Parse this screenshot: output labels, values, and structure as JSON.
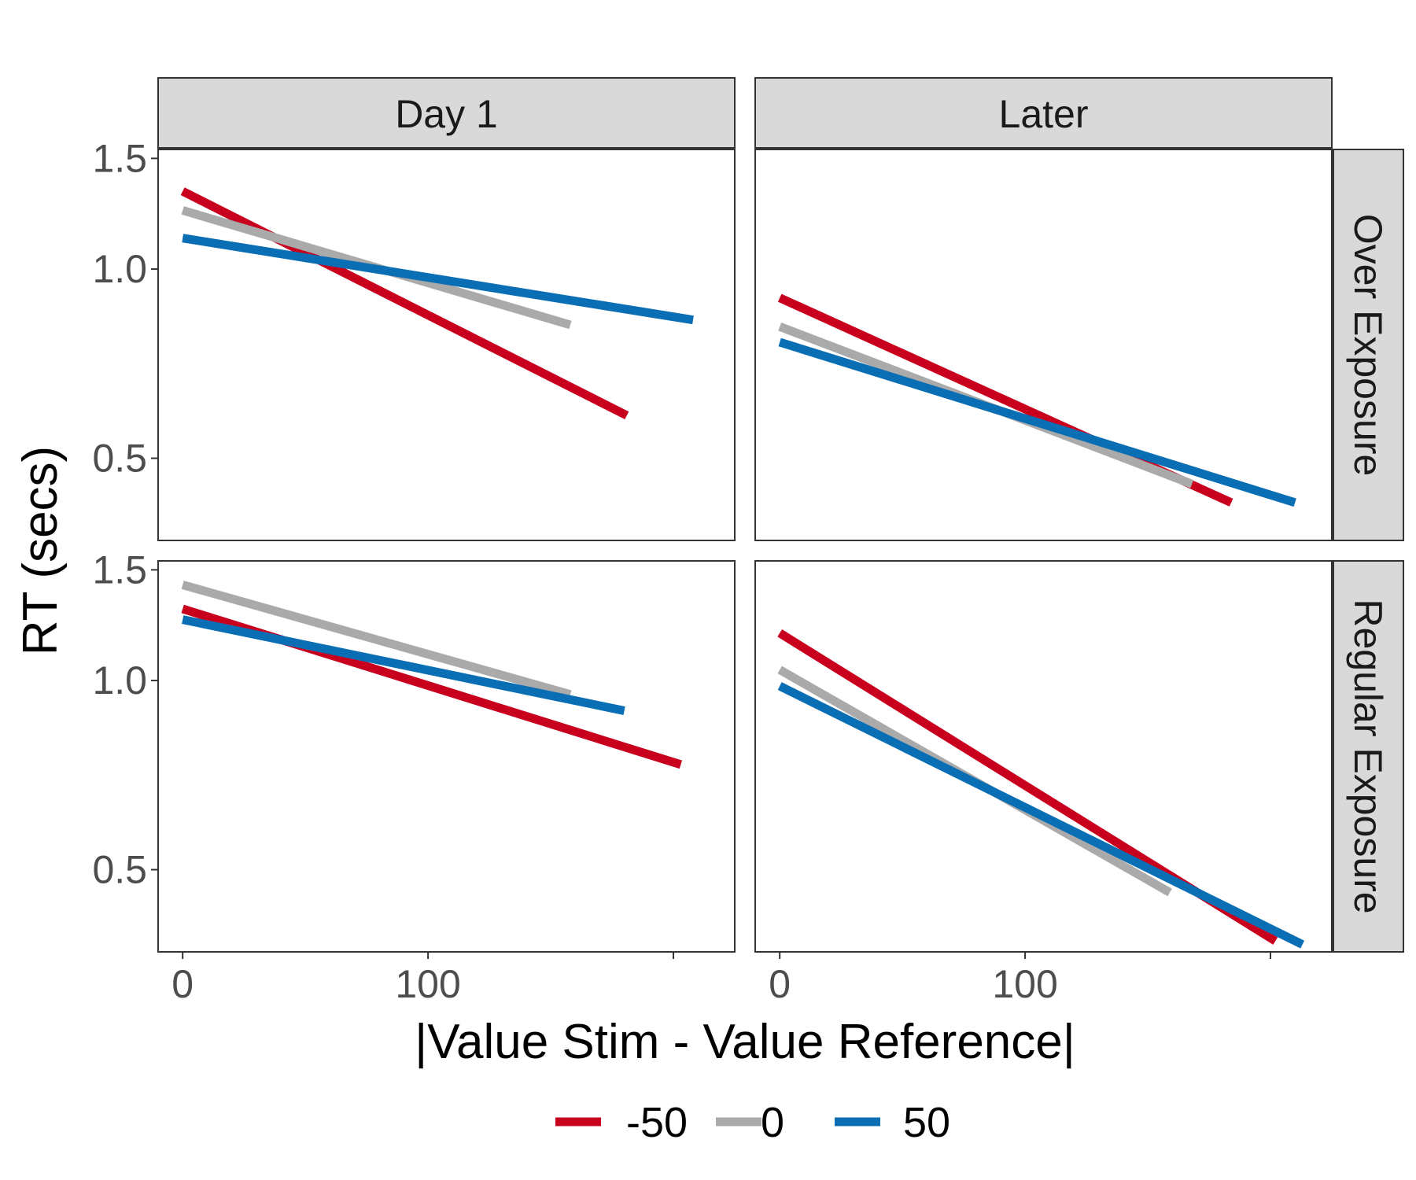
{
  "chart_data": {
    "type": "line",
    "xlabel": "|Value Stim - Value Reference|",
    "ylabel": "RT (secs)",
    "y_scale": "log",
    "ylim": [
      0.37,
      1.55
    ],
    "xlim": [
      -10,
      225
    ],
    "x_ticks": [
      {
        "value": 0,
        "label": "0"
      },
      {
        "value": 100,
        "label": "100"
      },
      {
        "value": 200,
        "label": ""
      }
    ],
    "y_ticks": [
      {
        "value": 0.5,
        "label": "0.5"
      },
      {
        "value": 1.0,
        "label": "1.0"
      },
      {
        "value": 1.5,
        "label": "1.5"
      }
    ],
    "columns": [
      "Day 1",
      "Later"
    ],
    "rows": [
      "Over Exposure",
      "Regular Exposure"
    ],
    "legend_position": "bottom",
    "series_names": [
      "-50",
      "0",
      "50"
    ],
    "colors": {
      "-50": "#c8001e",
      "0": "#aaaaaa",
      "50": "#0a6eb4"
    },
    "panels": [
      {
        "column": "Day 1",
        "row": "Over Exposure",
        "series": [
          {
            "name": "-50",
            "x": [
              0,
              181
            ],
            "y": [
              1.33,
              0.585
            ]
          },
          {
            "name": "0",
            "x": [
              0,
              158
            ],
            "y": [
              1.24,
              0.815
            ]
          },
          {
            "name": "50",
            "x": [
              0,
              208
            ],
            "y": [
              1.12,
              0.83
            ]
          }
        ]
      },
      {
        "column": "Later",
        "row": "Over Exposure",
        "series": [
          {
            "name": "-50",
            "x": [
              0,
              184
            ],
            "y": [
              0.9,
              0.425
            ]
          },
          {
            "name": "0",
            "x": [
              0,
              168
            ],
            "y": [
              0.81,
              0.455
            ]
          },
          {
            "name": "50",
            "x": [
              0,
              210
            ],
            "y": [
              0.765,
              0.425
            ]
          }
        ]
      },
      {
        "column": "Day 1",
        "row": "Regular Exposure",
        "series": [
          {
            "name": "-50",
            "x": [
              0,
              203
            ],
            "y": [
              1.3,
              0.735
            ]
          },
          {
            "name": "0",
            "x": [
              0,
              158
            ],
            "y": [
              1.42,
              0.95
            ]
          },
          {
            "name": "50",
            "x": [
              0,
              180
            ],
            "y": [
              1.25,
              0.895
            ]
          }
        ]
      },
      {
        "column": "Later",
        "row": "Regular Exposure",
        "series": [
          {
            "name": "-50",
            "x": [
              0,
              202
            ],
            "y": [
              1.19,
              0.385
            ]
          },
          {
            "name": "0",
            "x": [
              0,
              159
            ],
            "y": [
              1.04,
              0.46
            ]
          },
          {
            "name": "50",
            "x": [
              0,
              213
            ],
            "y": [
              0.98,
              0.38
            ]
          }
        ]
      }
    ]
  }
}
